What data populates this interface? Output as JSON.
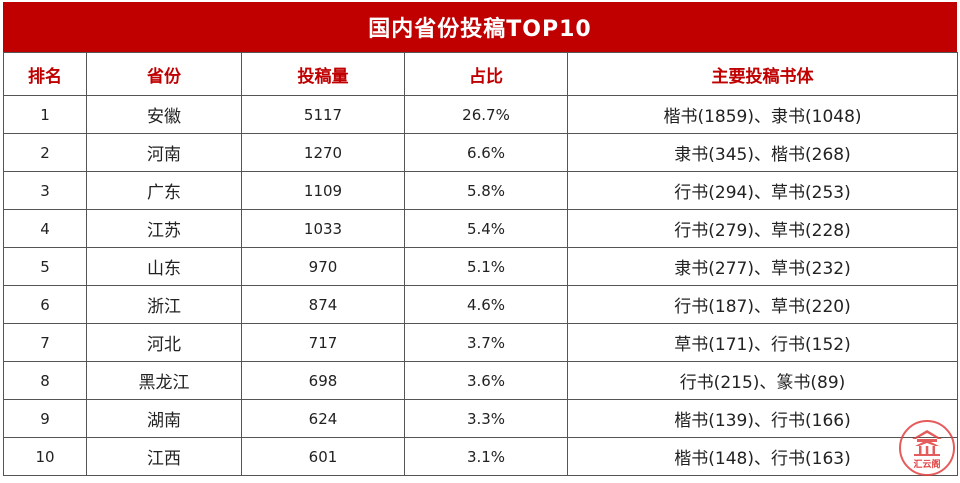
{
  "title": "国内省份投稿TOP10",
  "headers": [
    "排名",
    "省份",
    "投稿量",
    "占比",
    "主要投稿书体"
  ],
  "rows": [
    {
      "rank": "1",
      "province": "安徽",
      "count": "5117",
      "share": "26.7%",
      "fonts": "楷书(1859)、隶书(1048)"
    },
    {
      "rank": "2",
      "province": "河南",
      "count": "1270",
      "share": "6.6%",
      "fonts": "隶书(345)、楷书(268)"
    },
    {
      "rank": "3",
      "province": "广东",
      "count": "1109",
      "share": "5.8%",
      "fonts": "行书(294)、草书(253)"
    },
    {
      "rank": "4",
      "province": "江苏",
      "count": "1033",
      "share": "5.4%",
      "fonts": "行书(279)、草书(228)"
    },
    {
      "rank": "5",
      "province": "山东",
      "count": "970",
      "share": "5.1%",
      "fonts": "隶书(277)、草书(232)"
    },
    {
      "rank": "6",
      "province": "浙江",
      "count": "874",
      "share": "4.6%",
      "fonts": "行书(187)、草书(220)"
    },
    {
      "rank": "7",
      "province": "河北",
      "count": "717",
      "share": "3.7%",
      "fonts": "草书(171)、行书(152)"
    },
    {
      "rank": "8",
      "province": "黑龙江",
      "count": "698",
      "share": "3.6%",
      "fonts": "行书(215)、篆书(89)"
    },
    {
      "rank": "9",
      "province": "湖南",
      "count": "624",
      "share": "3.3%",
      "fonts": "楷书(139)、行书(166)"
    },
    {
      "rank": "10",
      "province": "江西",
      "count": "601",
      "share": "3.1%",
      "fonts": "楷书(148)、行书(163)"
    }
  ],
  "logo": {
    "text": "汇云阁",
    "color": "#e04040"
  }
}
